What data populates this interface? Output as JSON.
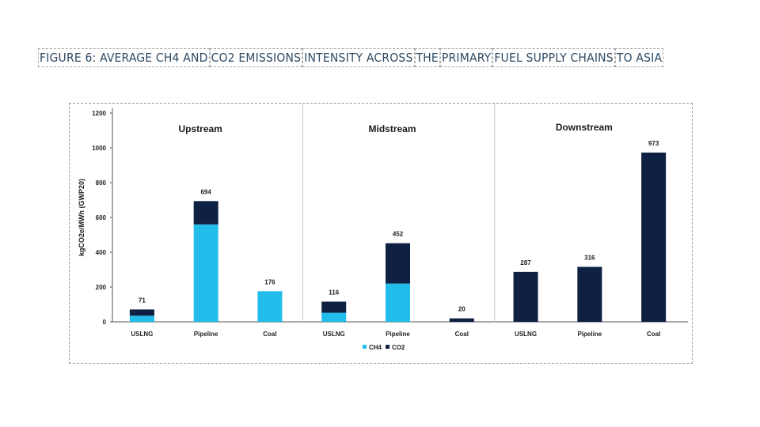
{
  "title_segments": [
    "FIGURE 6: AVERAGE CH4 AND",
    "CO2 EMISSIONS",
    "INTENSITY ACROSS",
    "THE",
    "PRIMARY",
    "FUEL SUPPLY CHAINS",
    "TO ASIA"
  ],
  "chart_data": {
    "type": "bar",
    "stacked": true,
    "title": "FIGURE 6: AVERAGE CH4 AND CO2 EMISSIONS INTENSITY ACROSS THE PRIMARY FUEL SUPPLY CHAINS TO ASIA",
    "ylabel": "kgCO2e/MWh (GWP20)",
    "xlabel": "",
    "ylim": [
      0,
      1200
    ],
    "yticks": [
      0,
      200,
      400,
      600,
      800,
      1000,
      1200
    ],
    "groups": [
      "Upstream",
      "Midstream",
      "Downstream"
    ],
    "categories": [
      "USLNG",
      "Pipeline",
      "Coal",
      "USLNG",
      "Pipeline",
      "Coal",
      "USLNG",
      "Pipeline",
      "Coal"
    ],
    "series": [
      {
        "name": "CH4",
        "color": "#22bdea",
        "values": [
          35,
          560,
          176,
          52,
          220,
          0,
          0,
          0,
          0
        ]
      },
      {
        "name": "CO2",
        "color": "#0e2142",
        "values": [
          36,
          134,
          0,
          64,
          232,
          20,
          287,
          316,
          973
        ]
      }
    ],
    "totals": [
      71,
      694,
      176,
      116,
      452,
      20,
      287,
      316,
      973
    ],
    "legend": {
      "position": "bottom",
      "entries": [
        "CH4",
        "CO2"
      ]
    },
    "grid": false
  }
}
